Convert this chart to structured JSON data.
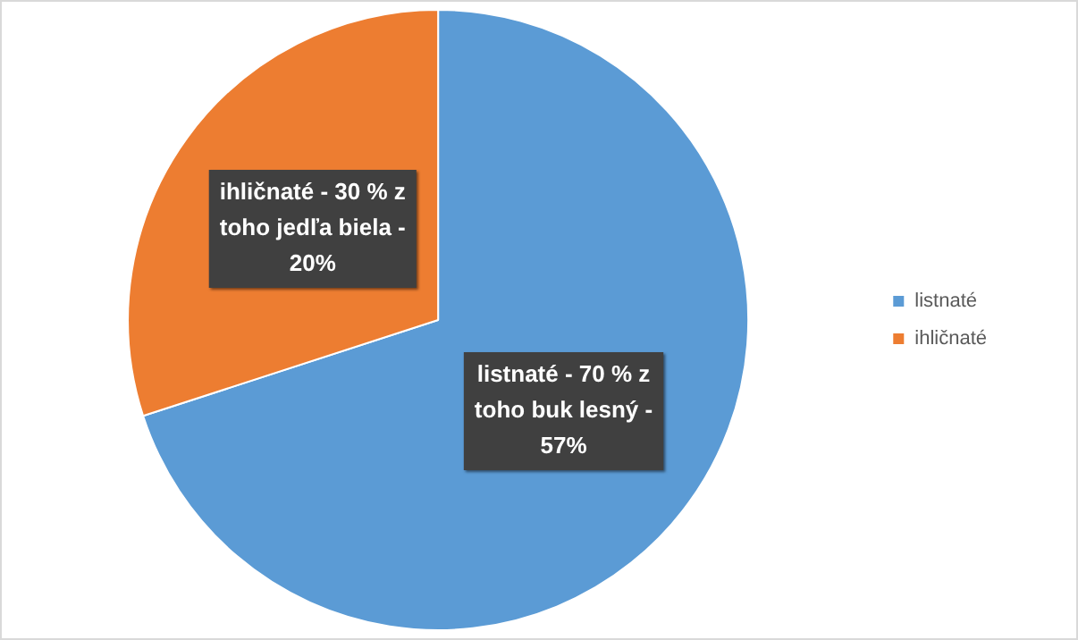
{
  "chart_data": {
    "type": "pie",
    "categories": [
      "listnaté",
      "ihličnaté"
    ],
    "values": [
      70,
      30
    ],
    "colors": [
      "#5b9bd5",
      "#ed7d31"
    ],
    "annotations": [
      "listnaté - 70 % z toho buk lesný - 57%",
      "ihličnaté - 30 % z toho jedľa biela - 20%"
    ],
    "legend": "right"
  }
}
